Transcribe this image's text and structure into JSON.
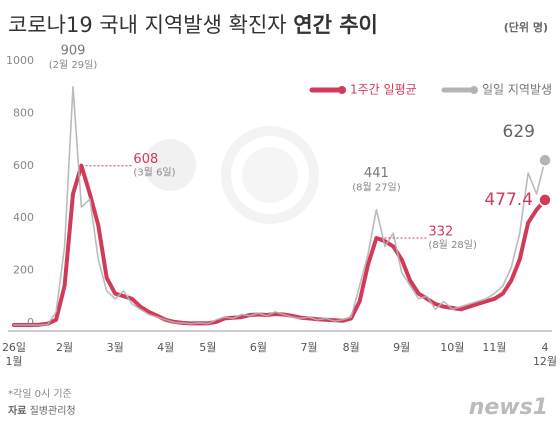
{
  "chart_data": {
    "type": "line",
    "title": "코로나19 국내 지역발생 확진자",
    "title_emphasis": "연간 추이",
    "unit_note": "(단위 명)",
    "categories": [
      "26일\n1월",
      null,
      null,
      null,
      null,
      null,
      "2월",
      null,
      null,
      null,
      null,
      null,
      "3월",
      null,
      null,
      null,
      null,
      null,
      "4월",
      null,
      null,
      null,
      null,
      "5월",
      null,
      null,
      null,
      null,
      null,
      "6월",
      null,
      null,
      null,
      null,
      null,
      "7월",
      null,
      null,
      null,
      null,
      "8월",
      null,
      null,
      null,
      null,
      null,
      "9월",
      null,
      null,
      null,
      null,
      null,
      "10월",
      null,
      null,
      null,
      null,
      "11월",
      null,
      null,
      null,
      null,
      null,
      "4\n12월"
    ],
    "ylim": [
      0,
      1000
    ],
    "yticks": [
      0,
      200,
      400,
      600,
      800,
      1000
    ],
    "grid": false,
    "legend": "top-right",
    "series": [
      {
        "name": "일일 지역발생",
        "color": "#b4b4b4",
        "values": [
          0,
          0,
          0,
          0,
          2,
          50,
          300,
          909,
          450,
          480,
          250,
          130,
          100,
          130,
          80,
          60,
          40,
          30,
          20,
          10,
          8,
          5,
          8,
          5,
          20,
          30,
          25,
          40,
          35,
          45,
          35,
          50,
          40,
          30,
          25,
          30,
          20,
          25,
          15,
          20,
          30,
          150,
          270,
          441,
          300,
          350,
          200,
          150,
          100,
          110,
          60,
          90,
          60,
          70,
          80,
          90,
          100,
          120,
          150,
          220,
          350,
          580,
          500,
          629
        ],
        "value_labels": [
          null,
          null,
          null,
          null,
          null,
          null,
          null,
          "909",
          null,
          null,
          null,
          null,
          null,
          null,
          null,
          null,
          null,
          null,
          null,
          null,
          null,
          null,
          null,
          null,
          null,
          null,
          null,
          null,
          null,
          null,
          null,
          null,
          null,
          null,
          null,
          null,
          null,
          null,
          null,
          null,
          null,
          null,
          null,
          "441",
          null,
          null,
          null,
          null,
          null,
          null,
          null,
          null,
          null,
          null,
          null,
          null,
          null,
          null,
          null,
          null,
          null,
          null,
          null,
          "629"
        ],
        "label_dates": [
          null,
          null,
          null,
          null,
          null,
          null,
          null,
          "(2월 29일)",
          null,
          null,
          null,
          null,
          null,
          null,
          null,
          null,
          null,
          null,
          null,
          null,
          null,
          null,
          null,
          null,
          null,
          null,
          null,
          null,
          null,
          null,
          null,
          null,
          null,
          null,
          null,
          null,
          null,
          null,
          null,
          null,
          null,
          null,
          null,
          "(8월 27일)",
          null,
          null,
          null,
          null,
          null,
          null,
          null,
          null,
          null,
          null,
          null,
          null,
          null,
          null,
          null,
          null,
          null,
          null,
          null,
          null
        ]
      },
      {
        "name": "1주간 일평균",
        "color": "#d23a5a",
        "values": [
          0,
          0,
          0,
          1,
          5,
          20,
          150,
          500,
          608,
          500,
          380,
          180,
          120,
          110,
          100,
          70,
          50,
          35,
          20,
          12,
          8,
          6,
          7,
          6,
          12,
          25,
          28,
          30,
          38,
          40,
          38,
          42,
          40,
          35,
          28,
          25,
          22,
          20,
          18,
          16,
          25,
          90,
          230,
          332,
          320,
          300,
          250,
          170,
          120,
          100,
          80,
          70,
          65,
          60,
          70,
          80,
          90,
          100,
          120,
          170,
          250,
          390,
          440,
          477.4
        ],
        "value_labels": [
          null,
          null,
          null,
          null,
          null,
          null,
          null,
          null,
          "608",
          null,
          null,
          null,
          null,
          null,
          null,
          null,
          null,
          null,
          null,
          null,
          null,
          null,
          null,
          null,
          null,
          null,
          null,
          null,
          null,
          null,
          null,
          null,
          null,
          null,
          null,
          null,
          null,
          null,
          null,
          null,
          null,
          null,
          null,
          "332",
          null,
          null,
          null,
          null,
          null,
          null,
          null,
          null,
          null,
          null,
          null,
          null,
          null,
          null,
          null,
          null,
          null,
          null,
          null,
          "477.4"
        ],
        "label_dates": [
          null,
          null,
          null,
          null,
          null,
          null,
          null,
          null,
          "(3월 6일)",
          null,
          null,
          null,
          null,
          null,
          null,
          null,
          null,
          null,
          null,
          null,
          null,
          null,
          null,
          null,
          null,
          null,
          null,
          null,
          null,
          null,
          null,
          null,
          null,
          null,
          null,
          null,
          null,
          null,
          null,
          null,
          null,
          null,
          null,
          "(8월 28일)",
          null,
          null,
          null,
          null,
          null,
          null,
          null,
          null,
          null,
          null,
          null,
          null,
          null,
          null,
          null,
          null,
          null,
          null,
          null,
          null
        ]
      }
    ]
  },
  "footer": {
    "note": "*각일 0시 기준",
    "source_label": "자료",
    "source": "질병관리청",
    "logo": "news1"
  }
}
